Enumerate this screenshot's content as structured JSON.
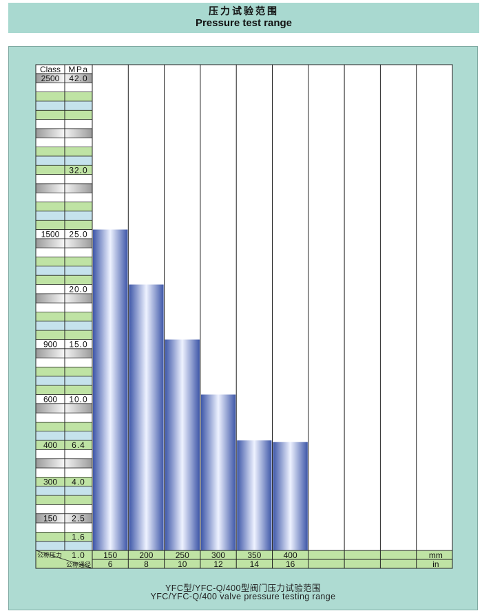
{
  "header": {
    "title_zh": "压力试验范围",
    "title_en": "Pressure test range"
  },
  "caption": {
    "line1": "YFC型/YFC-Q/400型阀门压力试验范围",
    "line2": "YFC/YFC-Q/400 valve pressure testing range"
  },
  "chart_data": {
    "type": "bar",
    "title": "Pressure test range",
    "axis_headers": {
      "class": "Class",
      "mpa": "MPa"
    },
    "ylim": [
      0,
      42.0
    ],
    "y_ticks": [
      {
        "class": "2500",
        "mpa": "42.0",
        "value": 42.0
      },
      {
        "class": "",
        "mpa": "32.0",
        "value": 32.0
      },
      {
        "class": "1500",
        "mpa": "25.0",
        "value": 25.0
      },
      {
        "class": "",
        "mpa": "20.0",
        "value": 20.0
      },
      {
        "class": "900",
        "mpa": "15.0",
        "value": 15.0
      },
      {
        "class": "600",
        "mpa": "10.0",
        "value": 10.0
      },
      {
        "class": "400",
        "mpa": "6.4",
        "value": 6.4
      },
      {
        "class": "300",
        "mpa": "4.0",
        "value": 4.0
      },
      {
        "class": "150",
        "mpa": "2.5",
        "value": 2.5
      },
      {
        "class": "",
        "mpa": "1.6",
        "value": 1.6
      },
      {
        "class": "",
        "mpa": "1.0",
        "value": 1.0
      }
    ],
    "x_row_labels": {
      "mm_label": "公称压力",
      "in_label": "公称通径"
    },
    "units": {
      "mm": "mm",
      "in": "in"
    },
    "categories_mm": [
      "150",
      "200",
      "250",
      "300",
      "350",
      "400"
    ],
    "categories_in": [
      "6",
      "8",
      "10",
      "12",
      "14",
      "16"
    ],
    "values": [
      25.0,
      20.0,
      15.0,
      10.0,
      6.4,
      6.3
    ],
    "empty_columns": 4,
    "grid": true,
    "colors": {
      "bar_edge": "#3e57a8",
      "bar_center": "#eef2ff",
      "green": "#bfe3a4",
      "blue": "#c5e2ec",
      "gray": "#b6b6b6"
    }
  }
}
